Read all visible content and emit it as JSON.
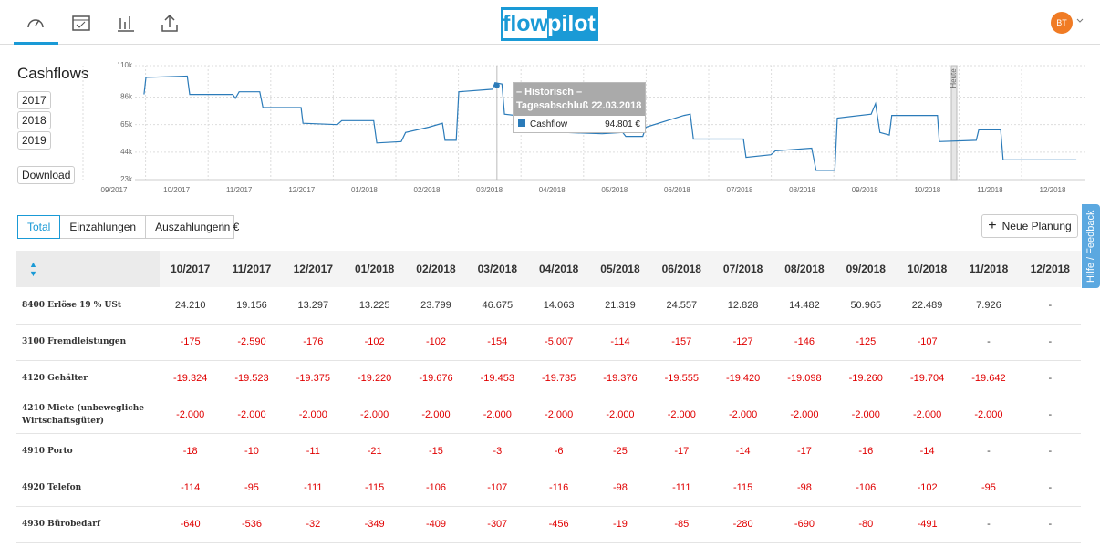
{
  "nav": {
    "logo_left": "flow",
    "logo_right": "pilot",
    "avatar": "BT"
  },
  "sidebar": {
    "title": "Cashflows",
    "years": [
      "2017",
      "2018",
      "2019"
    ],
    "download": "Download"
  },
  "chart": {
    "type": "line",
    "xlim": [
      0,
      15.5
    ],
    "xticks": [
      {
        "value": 0,
        "label": "09/2017"
      },
      {
        "value": 1,
        "label": "10/2017"
      },
      {
        "value": 2,
        "label": "11/2017"
      },
      {
        "value": 3,
        "label": "12/2017"
      },
      {
        "value": 4,
        "label": "01/2018"
      },
      {
        "value": 5,
        "label": "02/2018"
      },
      {
        "value": 6,
        "label": "03/2018"
      },
      {
        "value": 7,
        "label": "04/2018"
      },
      {
        "value": 8,
        "label": "05/2018"
      },
      {
        "value": 9,
        "label": "06/2018"
      },
      {
        "value": 10,
        "label": "07/2018"
      },
      {
        "value": 11,
        "label": "08/2018"
      },
      {
        "value": 12,
        "label": "09/2018"
      },
      {
        "value": 13,
        "label": "10/2018"
      },
      {
        "value": 14,
        "label": "11/2018"
      },
      {
        "value": 15,
        "label": "12/2018"
      }
    ],
    "ylim": [
      23000,
      110000
    ],
    "yticks": [
      {
        "value": 23000,
        "label": "23k"
      },
      {
        "value": 44000,
        "label": "44k"
      },
      {
        "value": 65000,
        "label": "65k"
      },
      {
        "value": 86000,
        "label": "86k"
      },
      {
        "value": 110000,
        "label": "110k"
      }
    ],
    "grid": true,
    "today_label": "Heute",
    "series": [
      {
        "name": "Cashflow",
        "color": "#2b7bb9",
        "x": [
          0.48,
          0.51,
          1.17,
          1.21,
          1.9,
          1.94,
          2.0,
          2.33,
          2.38,
          2.99,
          3.02,
          3.57,
          3.64,
          4.15,
          4.2,
          4.59,
          4.66,
          5.03,
          5.25,
          5.29,
          5.47,
          5.51,
          6.05,
          6.09,
          6.2,
          6.24,
          6.78,
          7.22,
          7.8,
          8.13,
          8.18,
          8.45,
          8.5,
          9.11,
          9.21,
          9.26,
          10.06,
          10.1,
          10.5,
          10.57,
          11.15,
          11.22,
          11.52,
          11.56,
          12.1,
          12.17,
          12.24,
          12.39,
          12.43,
          13.16,
          13.19,
          13.78,
          13.82,
          14.17,
          14.21,
          15.38
        ],
        "values": [
          88000,
          101000,
          102000,
          88000,
          88000,
          85000,
          90000,
          90000,
          78000,
          78000,
          66000,
          65000,
          68000,
          68000,
          51000,
          52000,
          59000,
          63000,
          66000,
          53000,
          53000,
          90000,
          92000,
          97000,
          96000,
          73000,
          70000,
          59000,
          58000,
          59000,
          56000,
          56000,
          63000,
          72000,
          73000,
          54000,
          54000,
          40000,
          42000,
          45000,
          47000,
          30000,
          30000,
          70000,
          73000,
          81000,
          59000,
          57000,
          72000,
          72000,
          52000,
          53000,
          61000,
          61000,
          38000,
          38000
        ]
      }
    ],
    "tooltip": {
      "header": "– Historisch –",
      "date": "Tagesabschluß 22.03.2018",
      "x": 6.12,
      "value": 94801,
      "value_label": "94.801 €"
    }
  },
  "tabs": [
    "Total",
    "Einzahlungen",
    "Auszahlungen"
  ],
  "unit": "in €",
  "new_button": "Neue Planung",
  "feedback": "Hilfe / Feedback",
  "table": {
    "columns": [
      "10/2017",
      "11/2017",
      "12/2017",
      "01/2018",
      "02/2018",
      "03/2018",
      "04/2018",
      "05/2018",
      "06/2018",
      "07/2018",
      "08/2018",
      "09/2018",
      "10/2018",
      "11/2018",
      "12/2018"
    ],
    "rows": [
      {
        "label": "8400 Erlöse 19 % USt",
        "cells": [
          "24.210",
          "19.156",
          "13.297",
          "13.225",
          "23.799",
          "46.675",
          "14.063",
          "21.319",
          "24.557",
          "12.828",
          "14.482",
          "50.965",
          "22.489",
          "7.926",
          "-"
        ]
      },
      {
        "label": "3100 Fremdleistungen",
        "cells": [
          "-175",
          "-2.590",
          "-176",
          "-102",
          "-102",
          "-154",
          "-5.007",
          "-114",
          "-157",
          "-127",
          "-146",
          "-125",
          "-107",
          "-",
          "-"
        ]
      },
      {
        "label": "4120 Gehälter",
        "cells": [
          "-19.324",
          "-19.523",
          "-19.375",
          "-19.220",
          "-19.676",
          "-19.453",
          "-19.735",
          "-19.376",
          "-19.555",
          "-19.420",
          "-19.098",
          "-19.260",
          "-19.704",
          "-19.642",
          "-"
        ]
      },
      {
        "label": "4210 Miete (unbewegliche Wirtschaftsgüter)",
        "cells": [
          "-2.000",
          "-2.000",
          "-2.000",
          "-2.000",
          "-2.000",
          "-2.000",
          "-2.000",
          "-2.000",
          "-2.000",
          "-2.000",
          "-2.000",
          "-2.000",
          "-2.000",
          "-2.000",
          "-"
        ]
      },
      {
        "label": "4910 Porto",
        "cells": [
          "-18",
          "-10",
          "-11",
          "-21",
          "-15",
          "-3",
          "-6",
          "-25",
          "-17",
          "-14",
          "-17",
          "-16",
          "-14",
          "-",
          "-"
        ]
      },
      {
        "label": "4920 Telefon",
        "cells": [
          "-114",
          "-95",
          "-111",
          "-115",
          "-106",
          "-107",
          "-116",
          "-98",
          "-111",
          "-115",
          "-98",
          "-106",
          "-102",
          "-95",
          "-"
        ]
      },
      {
        "label": "4930 Bürobedarf",
        "cells": [
          "-640",
          "-536",
          "-32",
          "-349",
          "-409",
          "-307",
          "-456",
          "-19",
          "-85",
          "-280",
          "-690",
          "-80",
          "-491",
          "-",
          "-"
        ]
      }
    ]
  }
}
